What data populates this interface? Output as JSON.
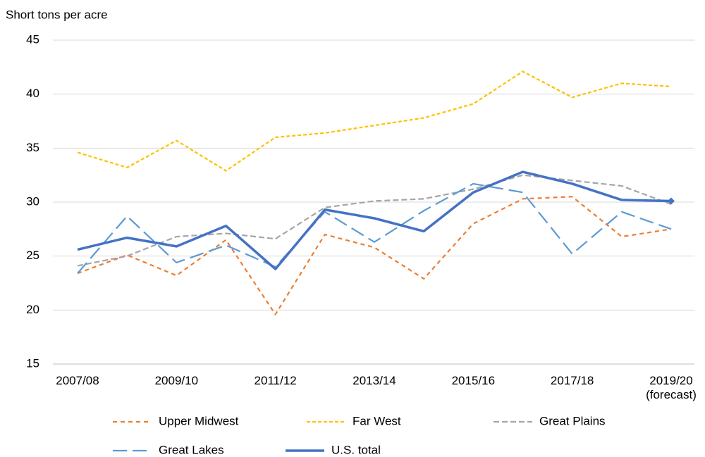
{
  "chart_data": {
    "type": "line",
    "y_axis_label": "Short tons per acre",
    "categories": [
      "2007/08",
      null,
      "2009/10",
      null,
      "2011/12",
      null,
      "2013/14",
      null,
      "2015/16",
      null,
      "2017/18",
      null,
      "2019/20 (forecast)"
    ],
    "ylim": [
      15,
      45
    ],
    "yticks": [
      15,
      20,
      25,
      30,
      35,
      40,
      45
    ],
    "grid": true,
    "legend": "bottom",
    "series": [
      {
        "name": "Upper Midwest",
        "color": "#ED7D31",
        "dash": "6,5",
        "values": [
          23.4,
          25.1,
          23.2,
          26.5,
          19.6,
          27.0,
          25.8,
          22.9,
          28.0,
          30.3,
          30.5,
          26.8,
          27.5
        ]
      },
      {
        "name": "Far West",
        "color": "#FFC000",
        "dash": "5,3",
        "values": [
          34.6,
          33.2,
          35.7,
          32.9,
          36.0,
          36.4,
          37.1,
          37.8,
          39.1,
          42.1,
          39.7,
          41.0,
          40.7
        ]
      },
      {
        "name": "Great Plains",
        "color": "#A5A5A5",
        "dash": "8,4",
        "values": [
          24.1,
          25.0,
          26.8,
          27.1,
          26.6,
          29.5,
          30.1,
          30.3,
          31.2,
          32.5,
          32.0,
          31.5,
          29.8
        ]
      },
      {
        "name": "Great Lakes",
        "color": "#5B9BD5",
        "dash": "20,8",
        "values": [
          23.4,
          28.7,
          24.4,
          26.0,
          24.0,
          29.1,
          26.3,
          29.2,
          31.7,
          30.9,
          25.2,
          29.1,
          27.5
        ]
      },
      {
        "name": "U.S. total",
        "color": "#4472C4",
        "width": 3.5,
        "end_marker": "diamond",
        "values": [
          25.6,
          26.7,
          25.9,
          27.8,
          23.8,
          29.3,
          28.5,
          27.3,
          30.9,
          32.8,
          31.7,
          30.2,
          30.1
        ]
      }
    ]
  }
}
